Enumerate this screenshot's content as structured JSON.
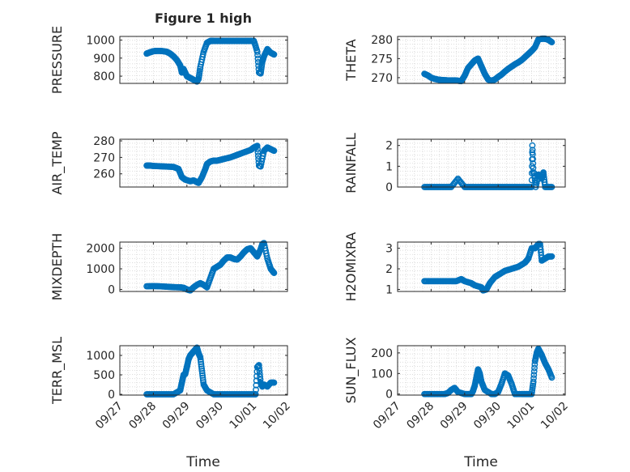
{
  "figure_title": "Figure 1 high",
  "x_label": "Time",
  "x_ticks": [
    "09/27",
    "09/28",
    "09/29",
    "09/30",
    "10/01",
    "10/02"
  ],
  "marker_color": "#0072BD",
  "grid": "dotted minor grid on",
  "chart_data": [
    {
      "type": "scatter",
      "ylabel": "PRESSURE",
      "ylim": [
        760,
        1020
      ],
      "yticks": [
        "800",
        "900",
        "1000"
      ],
      "x": [
        27.8,
        27.9,
        28.0,
        28.1,
        28.2,
        28.3,
        28.4,
        28.5,
        28.6,
        28.7,
        28.8,
        28.85,
        28.9,
        29.0,
        29.1,
        29.2,
        29.3,
        29.35,
        29.4,
        29.5,
        29.6,
        29.7,
        29.8,
        30.0,
        30.2,
        30.4,
        30.6,
        30.8,
        31.0,
        31.1,
        31.15,
        31.2,
        31.25,
        31.3,
        31.4,
        31.5,
        31.6
      ],
      "y": [
        925,
        932,
        938,
        940,
        940,
        938,
        935,
        925,
        910,
        890,
        860,
        820,
        840,
        800,
        790,
        780,
        770,
        785,
        850,
        935,
        985,
        995,
        995,
        995,
        995,
        995,
        995,
        995,
        995,
        935,
        820,
        815,
        880,
        910,
        950,
        930,
        920
      ]
    },
    {
      "type": "scatter",
      "ylabel": "THETA",
      "ylim": [
        268.5,
        280.8
      ],
      "yticks": [
        "270",
        "275",
        "280"
      ],
      "x": [
        27.8,
        27.9,
        28.0,
        28.1,
        28.2,
        28.3,
        28.5,
        28.7,
        28.8,
        28.9,
        29.0,
        29.1,
        29.2,
        29.3,
        29.4,
        29.5,
        29.6,
        29.7,
        29.8,
        29.9,
        30.0,
        30.1,
        30.2,
        30.3,
        30.4,
        30.5,
        30.6,
        30.7,
        30.8,
        30.9,
        31.0,
        31.1,
        31.2,
        31.3,
        31.4,
        31.5,
        31.6
      ],
      "y": [
        271,
        270.6,
        270,
        269.7,
        269.5,
        269.4,
        269.3,
        269.3,
        269.2,
        269.1,
        270.5,
        272.5,
        273.5,
        274.5,
        275,
        273,
        271,
        269.5,
        269.2,
        269.5,
        270.2,
        270.8,
        271.6,
        272.3,
        272.9,
        273.5,
        274.0,
        274.6,
        275.4,
        276.2,
        277,
        278,
        280,
        280.2,
        280.2,
        279.9,
        279.3
      ]
    },
    {
      "type": "scatter",
      "ylabel": "AIR_TEMP",
      "ylim": [
        252,
        281
      ],
      "yticks": [
        "260",
        "270",
        "280"
      ],
      "x": [
        27.8,
        27.9,
        28.0,
        28.2,
        28.4,
        28.6,
        28.75,
        28.85,
        28.95,
        29.1,
        29.2,
        29.3,
        29.35,
        29.45,
        29.55,
        29.6,
        29.7,
        29.8,
        29.9,
        30.0,
        30.1,
        30.3,
        30.5,
        30.7,
        30.9,
        31.0,
        31.1,
        31.15,
        31.2,
        31.3,
        31.4,
        31.5,
        31.6
      ],
      "y": [
        265,
        265,
        264.8,
        264.6,
        264.4,
        264.2,
        263,
        258,
        256.5,
        255.5,
        256,
        255,
        254.5,
        258,
        263,
        266,
        267.5,
        268,
        268,
        268.5,
        269,
        270,
        271.5,
        273,
        274.5,
        276,
        277,
        265,
        264.5,
        274,
        276,
        275,
        274
      ]
    },
    {
      "type": "scatter",
      "ylabel": "RAINFALL",
      "ylim": [
        0,
        2.3
      ],
      "yticks": [
        "0",
        "1",
        "2"
      ],
      "x": [
        27.8,
        28.0,
        28.2,
        28.4,
        28.6,
        28.8,
        29.0,
        29.2,
        29.4,
        29.6,
        29.8,
        30.0,
        30.2,
        30.4,
        30.6,
        30.8,
        31.0,
        31.02,
        31.05,
        31.08,
        31.12,
        31.2,
        31.3,
        31.35,
        31.4,
        31.6
      ],
      "y": [
        0,
        0,
        0,
        0,
        0,
        0.4,
        0,
        0,
        0,
        0,
        0,
        0,
        0,
        0,
        0,
        0,
        0,
        2,
        0.7,
        0.65,
        0,
        0.6,
        0.4,
        0.7,
        0,
        0
      ]
    },
    {
      "type": "scatter",
      "ylabel": "MIXDEPTH",
      "ylim": [
        -100,
        2300
      ],
      "yticks": [
        "0",
        "1000",
        "2000"
      ],
      "x": [
        27.8,
        28.0,
        28.2,
        28.4,
        28.6,
        28.8,
        28.9,
        29.0,
        29.1,
        29.2,
        29.3,
        29.4,
        29.5,
        29.6,
        29.7,
        29.8,
        29.9,
        30.0,
        30.1,
        30.2,
        30.3,
        30.4,
        30.5,
        30.6,
        30.7,
        30.8,
        30.9,
        31.0,
        31.1,
        31.2,
        31.25,
        31.3,
        31.4,
        31.5,
        31.6
      ],
      "y": [
        150,
        160,
        150,
        130,
        110,
        100,
        80,
        0,
        -50,
        100,
        220,
        300,
        220,
        100,
        550,
        1000,
        1100,
        1200,
        1400,
        1550,
        1550,
        1480,
        1450,
        1600,
        1800,
        1950,
        2000,
        1800,
        1600,
        1950,
        2200,
        2250,
        1500,
        1000,
        800
      ]
    },
    {
      "type": "scatter",
      "ylabel": "H2OMIXRA",
      "ylim": [
        0.9,
        3.3
      ],
      "yticks": [
        "1",
        "2",
        "3"
      ],
      "x": [
        27.8,
        28.0,
        28.2,
        28.4,
        28.6,
        28.75,
        28.9,
        29.0,
        29.2,
        29.3,
        29.5,
        29.55,
        29.65,
        29.75,
        29.9,
        30.0,
        30.2,
        30.4,
        30.6,
        30.8,
        30.9,
        31.0,
        31.1,
        31.15,
        31.2,
        31.25,
        31.3,
        31.4,
        31.5,
        31.6
      ],
      "y": [
        1.4,
        1.4,
        1.4,
        1.4,
        1.4,
        1.4,
        1.5,
        1.4,
        1.3,
        1.2,
        1.1,
        0.95,
        1.0,
        1.3,
        1.6,
        1.7,
        1.9,
        2.0,
        2.1,
        2.3,
        2.5,
        3.0,
        3.0,
        3.1,
        3.2,
        3.2,
        2.4,
        2.5,
        2.6,
        2.6
      ]
    },
    {
      "type": "scatter",
      "ylabel": "TERR_MSL",
      "ylim": [
        -20,
        1250
      ],
      "yticks": [
        "0",
        "500",
        "1000"
      ],
      "x": [
        27.8,
        28.0,
        28.2,
        28.4,
        28.6,
        28.8,
        28.85,
        28.9,
        28.95,
        29.0,
        29.05,
        29.1,
        29.15,
        29.2,
        29.25,
        29.3,
        29.35,
        29.4,
        29.45,
        29.5,
        29.6,
        29.8,
        30.0,
        30.2,
        30.4,
        30.6,
        30.8,
        31.0,
        31.05,
        31.1,
        31.15,
        31.2,
        31.25,
        31.3,
        31.4,
        31.5,
        31.6
      ],
      "y": [
        0,
        0,
        0,
        0,
        0,
        100,
        300,
        500,
        520,
        700,
        900,
        1000,
        1050,
        1100,
        1150,
        1200,
        1050,
        950,
        600,
        250,
        100,
        0,
        0,
        0,
        0,
        0,
        0,
        0,
        0,
        700,
        750,
        300,
        200,
        250,
        200,
        300,
        300
      ]
    },
    {
      "type": "scatter",
      "ylabel": "SUN_FLUX",
      "ylim": [
        -5,
        235
      ],
      "yticks": [
        "0",
        "100",
        "200"
      ],
      "x": [
        27.8,
        28.0,
        28.2,
        28.4,
        28.5,
        28.6,
        28.7,
        28.8,
        29.0,
        29.1,
        29.2,
        29.25,
        29.3,
        29.35,
        29.4,
        29.45,
        29.5,
        29.6,
        29.8,
        29.9,
        30.0,
        30.1,
        30.2,
        30.3,
        30.4,
        30.5,
        30.7,
        30.8,
        30.9,
        31.0,
        31.05,
        31.1,
        31.15,
        31.2,
        31.3,
        31.4,
        31.5,
        31.6
      ],
      "y": [
        0,
        0,
        0,
        0,
        5,
        20,
        30,
        10,
        0,
        0,
        0,
        15,
        40,
        80,
        120,
        100,
        60,
        20,
        0,
        0,
        10,
        50,
        100,
        90,
        50,
        0,
        0,
        0,
        0,
        0,
        60,
        160,
        200,
        220,
        190,
        150,
        120,
        80
      ]
    }
  ]
}
